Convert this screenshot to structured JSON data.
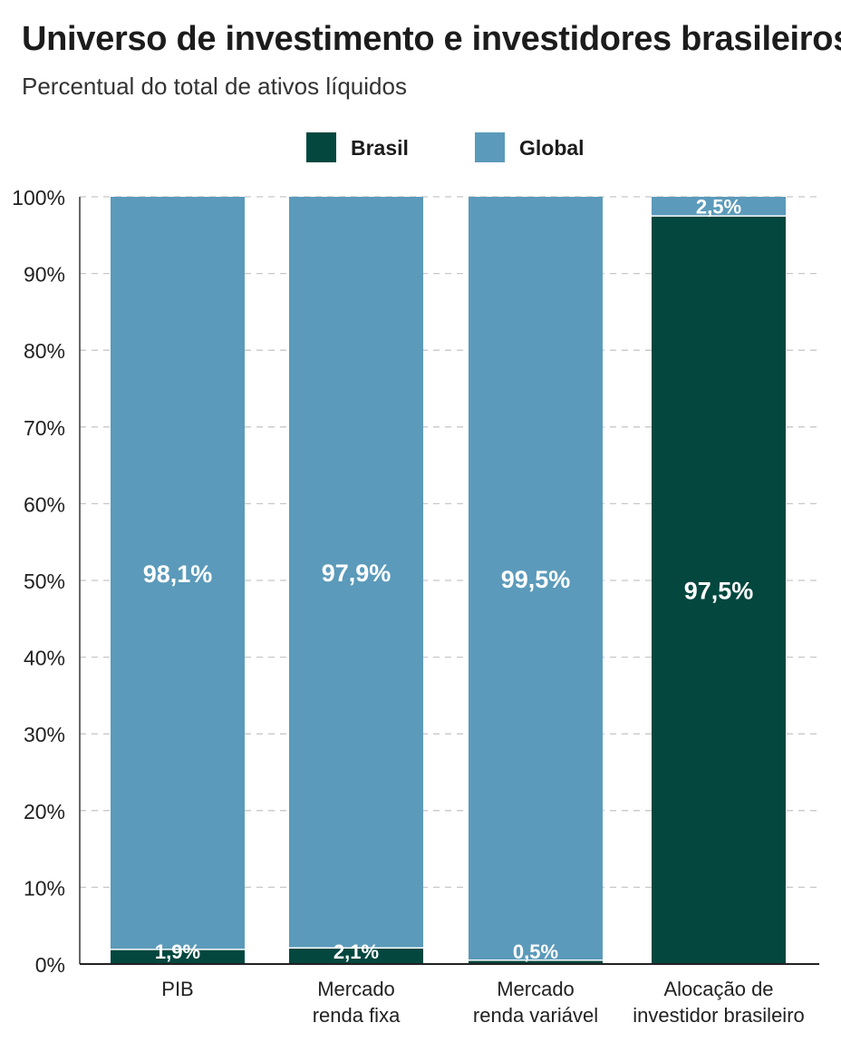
{
  "chart_data": {
    "type": "bar",
    "stacked": true,
    "title": "Universo de investimento e investidores brasileiros",
    "subtitle": "Percentual do total de ativos líquidos",
    "categories": [
      "PIB",
      "Mercado renda fixa",
      "Mercado renda variável",
      "Alocação de investidor brasileiro"
    ],
    "category_lines": [
      [
        "PIB"
      ],
      [
        "Mercado",
        "renda fixa"
      ],
      [
        "Mercado",
        "renda variável"
      ],
      [
        "Alocação de",
        "investidor brasileiro"
      ]
    ],
    "series": [
      {
        "name": "Brasil",
        "color": "#03473f",
        "values": [
          1.9,
          2.1,
          0.5,
          97.5
        ],
        "labels": [
          "1,9%",
          "2,1%",
          "0,5%",
          "97,5%"
        ]
      },
      {
        "name": "Global",
        "color": "#5b9aba",
        "values": [
          98.1,
          97.9,
          99.5,
          2.5
        ],
        "labels": [
          "98,1%",
          "97,9%",
          "99,5%",
          "2,5%"
        ]
      }
    ],
    "ylim": [
      0,
      100
    ],
    "yticks": [
      0,
      10,
      20,
      30,
      40,
      50,
      60,
      70,
      80,
      90,
      100
    ],
    "ytick_labels": [
      "0%",
      "10%",
      "20%",
      "30%",
      "40%",
      "50%",
      "60%",
      "70%",
      "80%",
      "90%",
      "100%"
    ],
    "grid": true,
    "legend_position": "top-center",
    "xlabel": "",
    "ylabel": ""
  }
}
